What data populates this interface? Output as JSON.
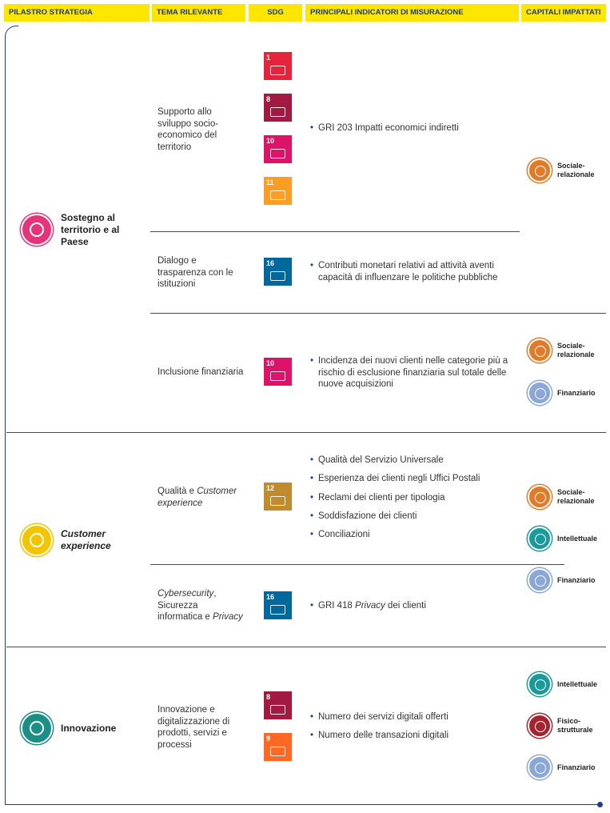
{
  "header": {
    "columns": [
      "PILASTRO STRATEGIA",
      "TEMA RILEVANTE",
      "SDG",
      "PRINCIPALI INDICATORI DI MISURAZIONE",
      "CAPITALI IMPATTATI"
    ]
  },
  "pillars": [
    {
      "name": [
        {
          "text": "Sostegno al territorio e al Paese"
        }
      ],
      "topics": [
        {
          "name": [
            {
              "text": "Supporto allo sviluppo socio-economico del territorio"
            }
          ],
          "sdgs": [
            "1",
            "8",
            "10",
            "11"
          ],
          "indicators": [
            [
              {
                "text": "GRI 203 Impatti economici indiretti"
              }
            ]
          ]
        },
        {
          "name": [
            {
              "text": "Dialogo e trasparenza con le istituzioni"
            }
          ],
          "sdgs": [
            "16"
          ],
          "indicators": [
            [
              {
                "text": "Contributi monetari relativi ad attività aventi capacità di influenzare le politiche pubbliche"
              }
            ]
          ]
        },
        {
          "name": [
            {
              "text": "Inclusione finanziaria"
            }
          ],
          "sdgs": [
            "10"
          ],
          "indicators": [
            [
              {
                "text": "Incidenza dei nuovi clienti nelle categorie più a rischio di esclusione finanziaria sul totale delle nuove acquisizioni"
              }
            ]
          ]
        }
      ],
      "capital_groups": [
        [
          "Sociale-relazionale"
        ],
        [
          "Sociale-relazionale",
          "Finanziario"
        ]
      ]
    },
    {
      "name": [
        {
          "text": "Customer experience",
          "italic": true
        }
      ],
      "topics": [
        {
          "name": [
            {
              "text": "Qualità e "
            },
            {
              "text": "Customer experience",
              "italic": true
            }
          ],
          "sdgs": [
            "12"
          ],
          "indicators": [
            [
              {
                "text": "Qualità del Servizio Universale"
              }
            ],
            [
              {
                "text": "Esperienza dei clienti negli Uffici Postali"
              }
            ],
            [
              {
                "text": "Reclami dei clienti per tipologia"
              }
            ],
            [
              {
                "text": "Soddisfazione dei clienti"
              }
            ],
            [
              {
                "text": "Conciliazioni"
              }
            ]
          ]
        },
        {
          "name": [
            {
              "text": "Cybersecurity",
              "italic": true
            },
            {
              "text": ", Sicurezza informatica e "
            },
            {
              "text": "Privacy",
              "italic": true
            }
          ],
          "sdgs": [
            "16"
          ],
          "indicators": [
            [
              {
                "text": "GRI 418 "
              },
              {
                "text": "Privacy",
                "italic": true
              },
              {
                "text": " dei clienti"
              }
            ]
          ]
        }
      ],
      "capital_groups": [
        [
          "Sociale-relazionale",
          "Intellettuale",
          "Finanziario"
        ]
      ]
    },
    {
      "name": [
        {
          "text": "Innovazione"
        }
      ],
      "topics": [
        {
          "name": [
            {
              "text": "Innovazione e digitalizzazione di prodotti, servizi e processi"
            }
          ],
          "sdgs": [
            "8",
            "9"
          ],
          "indicators": [
            [
              {
                "text": "Numero dei servizi digitali offerti"
              }
            ],
            [
              {
                "text": "Numero delle transazioni digitali"
              }
            ]
          ]
        }
      ],
      "capital_groups": [
        [
          "Intellettuale",
          "Fisico-strutturale",
          "Finanziario"
        ]
      ]
    }
  ]
}
